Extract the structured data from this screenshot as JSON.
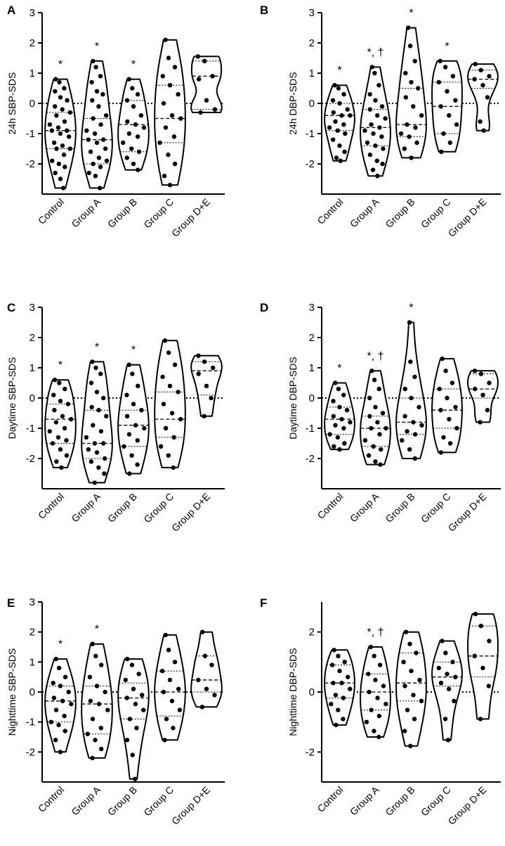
{
  "chart_data": [
    {
      "type": "violin",
      "panel": "A",
      "ylabel": "24h SBP-SDS",
      "ylim": [
        -3,
        3
      ],
      "yticks": [
        -2,
        -1,
        0,
        1,
        2,
        3
      ],
      "categories": [
        "Control",
        "Group A",
        "Group B",
        "Group C",
        "Group D+E"
      ],
      "significance": [
        "*",
        "*",
        "*",
        "",
        ""
      ],
      "groups": [
        {
          "name": "Control",
          "min": -2.8,
          "max": 0.8,
          "q1": -1.5,
          "median": -0.9,
          "q3": -0.3,
          "points": [
            0.8,
            0.7,
            0.5,
            0.4,
            0.2,
            0.1,
            -0.1,
            -0.2,
            -0.3,
            -0.4,
            -0.6,
            -0.7,
            -0.8,
            -0.9,
            -0.9,
            -1.0,
            -1.1,
            -1.3,
            -1.4,
            -1.5,
            -1.5,
            -1.7,
            -1.9,
            -2.0,
            -2.1,
            -2.3,
            -2.5,
            -2.8
          ]
        },
        {
          "name": "Group A",
          "min": -2.8,
          "max": 1.4,
          "q1": -2.0,
          "median": -1.2,
          "q3": -0.5,
          "points": [
            1.4,
            1.2,
            0.9,
            0.7,
            0.4,
            0.3,
            0.1,
            -0.1,
            -0.4,
            -0.5,
            -0.7,
            -0.9,
            -1.0,
            -1.2,
            -1.2,
            -1.3,
            -1.5,
            -1.6,
            -1.8,
            -1.9,
            -2.0,
            -2.1,
            -2.3,
            -2.4,
            -2.8
          ]
        },
        {
          "name": "Group B",
          "min": -2.2,
          "max": 0.8,
          "q1": -1.6,
          "median": -0.7,
          "q3": 0.1,
          "points": [
            0.8,
            0.5,
            0.3,
            0.1,
            -0.1,
            -0.4,
            -0.6,
            -0.7,
            -0.8,
            -1.0,
            -1.1,
            -1.3,
            -1.5,
            -1.6,
            -1.8,
            -2.0,
            -2.2
          ]
        },
        {
          "name": "Group C",
          "min": -2.7,
          "max": 2.1,
          "q1": -1.3,
          "median": -0.5,
          "q3": 0.6,
          "points": [
            2.1,
            1.5,
            1.2,
            0.9,
            0.6,
            0.3,
            0.0,
            -0.4,
            -0.5,
            -0.8,
            -1.1,
            -1.3,
            -1.7,
            -2.0,
            -2.4,
            -2.7
          ]
        },
        {
          "name": "Group D+E",
          "min": -0.3,
          "max": 1.55,
          "q1": -0.2,
          "median": 0.9,
          "q3": 1.4,
          "points": [
            1.55,
            1.4,
            0.9,
            0.8,
            0.1,
            -0.2,
            -0.3
          ]
        }
      ]
    },
    {
      "type": "violin",
      "panel": "B",
      "ylabel": "24h DBP-SDS",
      "ylim": [
        -3,
        3
      ],
      "yticks": [
        -2,
        -1,
        0,
        1,
        2,
        3
      ],
      "categories": [
        "Control",
        "Group A",
        "Group B",
        "Group C",
        "Group D+E"
      ],
      "significance": [
        "*",
        "*, †",
        "*",
        "*",
        ""
      ],
      "groups": [
        {
          "name": "Control",
          "min": -1.9,
          "max": 0.6,
          "q1": -0.9,
          "median": -0.4,
          "q3": 0.0,
          "points": [
            0.6,
            0.5,
            0.3,
            0.1,
            0.0,
            -0.2,
            -0.3,
            -0.4,
            -0.4,
            -0.6,
            -0.7,
            -0.8,
            -0.9,
            -1.0,
            -1.2,
            -1.4,
            -1.6,
            -1.8,
            -1.9
          ]
        },
        {
          "name": "Group A",
          "min": -2.4,
          "max": 1.2,
          "q1": -1.4,
          "median": -0.8,
          "q3": -0.2,
          "points": [
            1.2,
            1.0,
            0.6,
            0.3,
            0.1,
            -0.1,
            -0.2,
            -0.4,
            -0.5,
            -0.7,
            -0.8,
            -0.9,
            -1.0,
            -1.1,
            -1.3,
            -1.4,
            -1.5,
            -1.7,
            -1.9,
            -2.0,
            -2.2,
            -2.4
          ]
        },
        {
          "name": "Group B",
          "min": -1.8,
          "max": 2.5,
          "q1": -1.1,
          "median": -0.7,
          "q3": 0.5,
          "points": [
            2.5,
            1.9,
            1.4,
            1.0,
            0.7,
            0.5,
            0.2,
            -0.1,
            -0.4,
            -0.7,
            -0.8,
            -1.0,
            -1.1,
            -1.3,
            -1.5,
            -1.8
          ]
        },
        {
          "name": "Group C",
          "min": -1.6,
          "max": 1.4,
          "q1": -1.0,
          "median": -0.1,
          "q3": 0.7,
          "points": [
            1.4,
            1.2,
            0.9,
            0.7,
            0.4,
            0.1,
            -0.1,
            -0.4,
            -0.7,
            -1.0,
            -1.3,
            -1.6
          ]
        },
        {
          "name": "Group D+E",
          "min": -0.9,
          "max": 1.3,
          "q1": 0.5,
          "median": 0.8,
          "q3": 1.1,
          "points": [
            1.3,
            1.1,
            0.9,
            0.8,
            0.6,
            0.2,
            -0.6,
            -0.9
          ]
        }
      ]
    },
    {
      "type": "violin",
      "panel": "C",
      "ylabel": "Daytime SBP-SDS",
      "ylim": [
        -3,
        3
      ],
      "yticks": [
        -2,
        -1,
        0,
        1,
        2,
        3
      ],
      "categories": [
        "Control",
        "Group A",
        "Group B",
        "Group C",
        "Group D+E"
      ],
      "significance": [
        "*",
        "*",
        "*",
        "",
        ""
      ],
      "groups": [
        {
          "name": "Control",
          "min": -2.3,
          "max": 0.6,
          "q1": -1.5,
          "median": -0.7,
          "q3": -0.2,
          "points": [
            0.6,
            0.5,
            0.3,
            0.1,
            -0.1,
            -0.2,
            -0.4,
            -0.6,
            -0.7,
            -0.8,
            -1.0,
            -1.1,
            -1.3,
            -1.4,
            -1.5,
            -1.7,
            -1.9,
            -2.1,
            -2.3
          ]
        },
        {
          "name": "Group A",
          "min": -2.8,
          "max": 1.2,
          "q1": -2.0,
          "median": -1.5,
          "q3": -0.4,
          "points": [
            1.2,
            1.0,
            0.8,
            0.5,
            0.2,
            0.0,
            -0.3,
            -0.4,
            -0.6,
            -0.9,
            -1.1,
            -1.3,
            -1.5,
            -1.5,
            -1.7,
            -1.8,
            -2.0,
            -2.1,
            -2.3,
            -2.5,
            -2.8
          ]
        },
        {
          "name": "Group B",
          "min": -2.5,
          "max": 1.1,
          "q1": -1.6,
          "median": -0.9,
          "q3": -0.4,
          "points": [
            1.1,
            0.8,
            0.4,
            0.1,
            -0.2,
            -0.4,
            -0.6,
            -0.9,
            -1.0,
            -1.2,
            -1.4,
            -1.6,
            -1.9,
            -2.2,
            -2.5
          ]
        },
        {
          "name": "Group C",
          "min": -2.3,
          "max": 1.9,
          "q1": -1.3,
          "median": -0.7,
          "q3": 0.2,
          "points": [
            1.9,
            1.5,
            1.1,
            0.7,
            0.4,
            0.2,
            -0.2,
            -0.5,
            -0.7,
            -1.0,
            -1.3,
            -1.6,
            -1.9,
            -2.3
          ]
        },
        {
          "name": "Group D+E",
          "min": -0.6,
          "max": 1.4,
          "q1": 0.1,
          "median": 0.9,
          "q3": 1.2,
          "points": [
            1.4,
            1.2,
            1.0,
            0.8,
            0.4,
            0.0,
            -0.6
          ]
        }
      ]
    },
    {
      "type": "violin",
      "panel": "D",
      "ylabel": "Daytime DBP-SDS",
      "ylim": [
        -3,
        3
      ],
      "yticks": [
        -2,
        -1,
        0,
        1,
        2,
        3
      ],
      "categories": [
        "Control",
        "Group A",
        "Group B",
        "Group C",
        "Group D+E"
      ],
      "significance": [
        "*",
        "*, †",
        "*",
        "",
        ""
      ],
      "groups": [
        {
          "name": "Control",
          "min": -1.7,
          "max": 0.5,
          "q1": -1.2,
          "median": -0.7,
          "q3": -0.3,
          "points": [
            0.5,
            0.3,
            0.1,
            -0.1,
            -0.3,
            -0.4,
            -0.6,
            -0.7,
            -0.8,
            -0.9,
            -1.0,
            -1.2,
            -1.3,
            -1.5,
            -1.6,
            -1.7
          ]
        },
        {
          "name": "Group A",
          "min": -2.2,
          "max": 0.9,
          "q1": -1.6,
          "median": -1.0,
          "q3": -0.6,
          "points": [
            0.9,
            0.6,
            0.3,
            0.0,
            -0.3,
            -0.5,
            -0.6,
            -0.8,
            -1.0,
            -1.0,
            -1.2,
            -1.4,
            -1.6,
            -1.7,
            -1.9,
            -2.1,
            -2.2
          ]
        },
        {
          "name": "Group B",
          "min": -2.0,
          "max": 2.5,
          "q1": -1.2,
          "median": -0.8,
          "q3": 0.0,
          "points": [
            2.5,
            1.2,
            0.7,
            0.3,
            0.0,
            -0.3,
            -0.6,
            -0.8,
            -0.9,
            -1.1,
            -1.2,
            -1.4,
            -1.7,
            -2.0
          ]
        },
        {
          "name": "Group C",
          "min": -1.8,
          "max": 1.3,
          "q1": -1.0,
          "median": -0.4,
          "q3": 0.3,
          "points": [
            1.3,
            0.9,
            0.5,
            0.3,
            0.0,
            -0.3,
            -0.4,
            -0.7,
            -1.0,
            -1.3,
            -1.5,
            -1.8
          ]
        },
        {
          "name": "Group D+E",
          "min": -0.8,
          "max": 0.9,
          "q1": 0.0,
          "median": 0.3,
          "q3": 0.8,
          "points": [
            0.9,
            0.8,
            0.5,
            0.3,
            0.1,
            -0.4,
            -0.8
          ]
        }
      ]
    },
    {
      "type": "violin",
      "panel": "E",
      "ylabel": "Nighttime SBP-SDS",
      "ylim": [
        -3,
        3
      ],
      "yticks": [
        -2,
        -1,
        0,
        1,
        2,
        3
      ],
      "categories": [
        "Control",
        "Group A",
        "Group B",
        "Group C",
        "Group D+E"
      ],
      "significance": [
        "*",
        "*",
        "",
        "",
        ""
      ],
      "groups": [
        {
          "name": "Control",
          "min": -2.0,
          "max": 1.1,
          "q1": -1.0,
          "median": -0.3,
          "q3": 0.2,
          "points": [
            1.1,
            0.8,
            0.5,
            0.3,
            0.2,
            0.0,
            -0.2,
            -0.3,
            -0.4,
            -0.6,
            -0.8,
            -1.0,
            -1.1,
            -1.3,
            -1.6,
            -2.0
          ]
        },
        {
          "name": "Group A",
          "min": -2.2,
          "max": 1.6,
          "q1": -1.4,
          "median": -0.4,
          "q3": 0.2,
          "points": [
            1.6,
            1.2,
            0.9,
            0.5,
            0.2,
            0.0,
            -0.3,
            -0.4,
            -0.6,
            -0.9,
            -1.2,
            -1.4,
            -1.6,
            -1.9,
            -2.2
          ]
        },
        {
          "name": "Group B",
          "min": -2.9,
          "max": 1.1,
          "q1": -0.9,
          "median": -0.2,
          "q3": 0.3,
          "points": [
            1.1,
            0.9,
            0.6,
            0.4,
            0.1,
            -0.1,
            -0.2,
            -0.4,
            -0.6,
            -0.9,
            -1.2,
            -1.6,
            -2.1,
            -2.9
          ]
        },
        {
          "name": "Group C",
          "min": -1.6,
          "max": 1.9,
          "q1": -0.8,
          "median": 0.0,
          "q3": 0.7,
          "points": [
            1.9,
            1.4,
            1.0,
            0.7,
            0.4,
            0.1,
            0.0,
            -0.3,
            -0.6,
            -0.9,
            -1.2,
            -1.6
          ]
        },
        {
          "name": "Group D+E",
          "min": -0.5,
          "max": 2.0,
          "q1": 0.0,
          "median": 0.4,
          "q3": 1.2,
          "points": [
            2.0,
            1.2,
            0.9,
            0.4,
            0.1,
            -0.1,
            -0.5
          ]
        }
      ]
    },
    {
      "type": "violin",
      "panel": "F",
      "ylabel": "Nighttime DBP-SDS",
      "ylim": [
        -3,
        3
      ],
      "yticks": [
        -2,
        0,
        2
      ],
      "categories": [
        "Control",
        "Group A",
        "Group B",
        "Group C",
        "Group D+E"
      ],
      "significance": [
        "",
        "*, †",
        "",
        "",
        ""
      ],
      "groups": [
        {
          "name": "Control",
          "min": -1.1,
          "max": 1.4,
          "q1": -0.2,
          "median": 0.3,
          "q3": 0.9,
          "points": [
            1.4,
            1.2,
            1.0,
            0.9,
            0.7,
            0.5,
            0.3,
            0.3,
            0.1,
            -0.1,
            -0.2,
            -0.4,
            -0.6,
            -0.9,
            -1.1
          ]
        },
        {
          "name": "Group A",
          "min": -1.5,
          "max": 1.5,
          "q1": -0.6,
          "median": 0.0,
          "q3": 0.6,
          "points": [
            1.5,
            1.2,
            0.9,
            0.6,
            0.4,
            0.2,
            0.0,
            -0.2,
            -0.4,
            -0.6,
            -0.8,
            -1.0,
            -1.3,
            -1.5
          ]
        },
        {
          "name": "Group B",
          "min": -1.8,
          "max": 2.0,
          "q1": -0.3,
          "median": 0.3,
          "q3": 1.3,
          "points": [
            2.0,
            1.6,
            1.3,
            1.0,
            0.7,
            0.4,
            0.2,
            -0.1,
            -0.3,
            -0.6,
            -0.9,
            -1.3,
            -1.8
          ]
        },
        {
          "name": "Group C",
          "min": -1.6,
          "max": 1.7,
          "q1": 0.2,
          "median": 0.5,
          "q3": 1.0,
          "points": [
            1.7,
            1.3,
            1.0,
            0.8,
            0.6,
            0.5,
            0.3,
            0.1,
            -0.3,
            -0.9,
            -1.6
          ]
        },
        {
          "name": "Group D+E",
          "min": -0.9,
          "max": 2.6,
          "q1": 0.5,
          "median": 1.2,
          "q3": 2.2,
          "points": [
            2.6,
            2.2,
            1.7,
            1.2,
            0.8,
            0.2,
            -0.9
          ]
        }
      ]
    }
  ]
}
